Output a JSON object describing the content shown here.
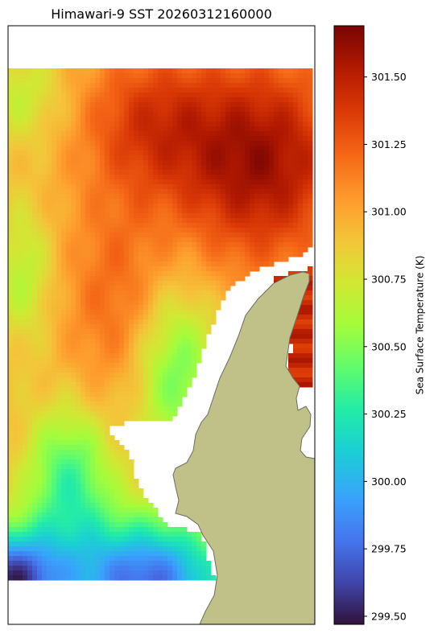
{
  "chart_data": {
    "type": "heatmap",
    "title": "Himawari-9 SST 20260312160000",
    "colorbar": {
      "label": "Sea Surface Temperature (K)",
      "colormap": "turbo",
      "range": [
        299.47,
        301.69
      ],
      "ticks": [
        299.5,
        299.75,
        300.0,
        300.25,
        300.5,
        300.75,
        301.0,
        301.25,
        301.5
      ],
      "tick_labels": [
        "299.50",
        "299.75",
        "300.00",
        "300.25",
        "300.50",
        "300.75",
        "301.00",
        "301.25",
        "301.50"
      ]
    },
    "field_description": {
      "high_region": "upper right (~301.6 K)",
      "low_region": "lower left (~299.5 K)",
      "land_color": "#c0c188",
      "missing_color": "#ffffff"
    }
  }
}
